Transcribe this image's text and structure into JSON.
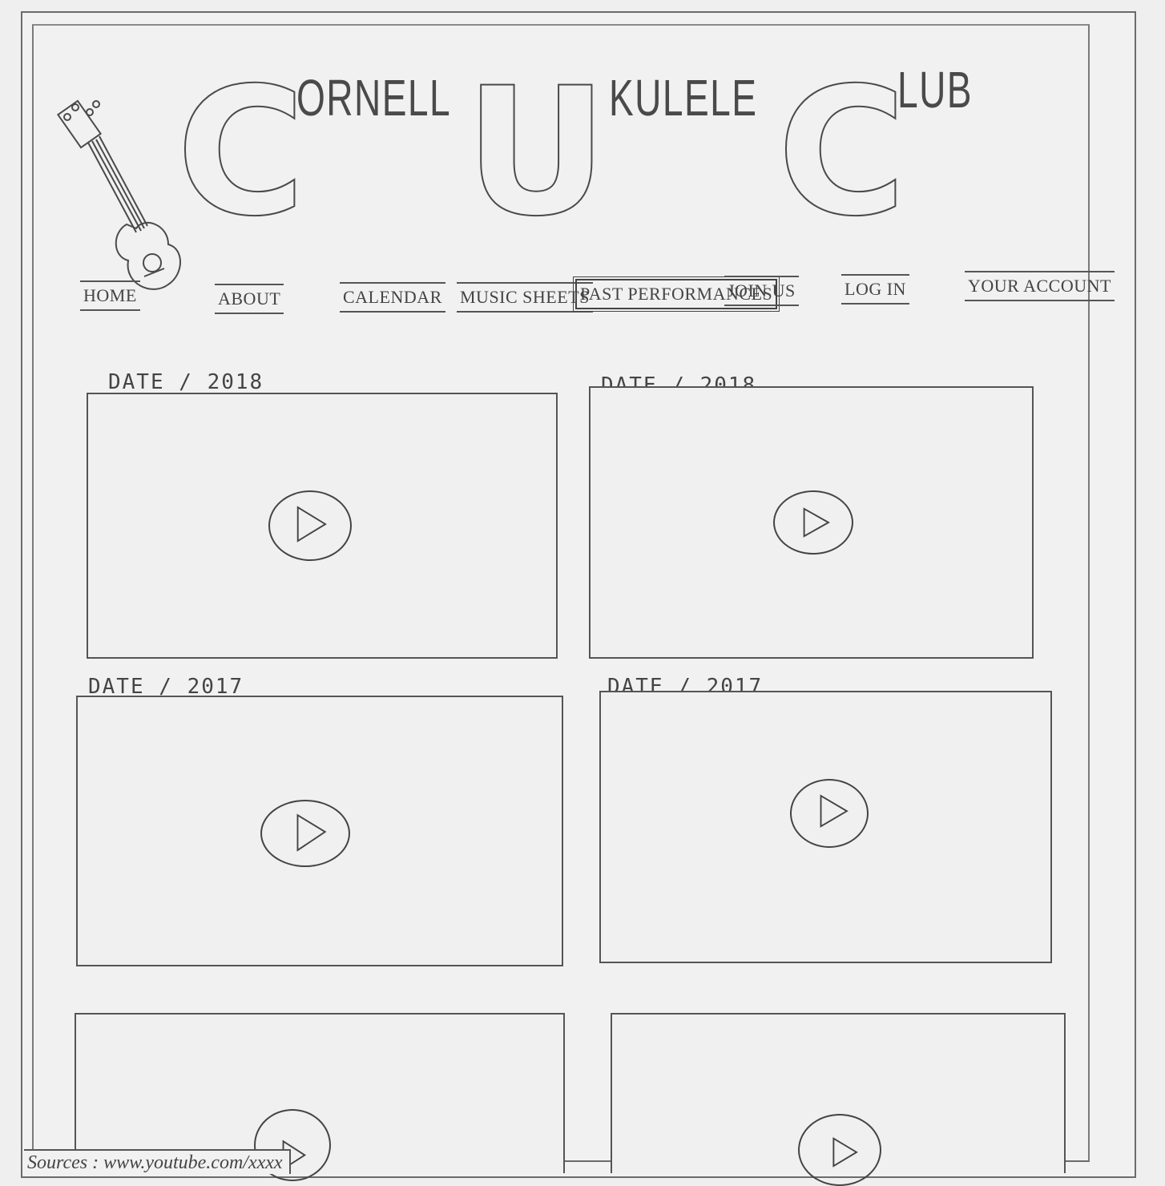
{
  "header": {
    "title_letters": {
      "c1": "C",
      "w1": "ORNELL",
      "u": "U",
      "w2": "KULELE",
      "c2": "C",
      "w3": "LUB"
    }
  },
  "nav": {
    "items": [
      {
        "label": "HOME"
      },
      {
        "label": "ABOUT"
      },
      {
        "label": "CALENDAR"
      },
      {
        "label": "MUSIC SHEETS"
      },
      {
        "label": "PAST PERFORMANCES",
        "active": true
      },
      {
        "label": "JOIN US"
      },
      {
        "label": "LOG IN"
      },
      {
        "label": "YOUR ACCOUNT"
      }
    ]
  },
  "videos": [
    {
      "date": "DATE / 2018",
      "icon": "play-icon"
    },
    {
      "date": "DATE / 2018",
      "icon": "play-icon"
    },
    {
      "date": "DATE / 2017",
      "icon": "play-icon"
    },
    {
      "date": "DATE / 2017",
      "icon": "play-icon"
    },
    {
      "date": "",
      "icon": "play-icon"
    },
    {
      "date": "",
      "icon": "play-icon"
    }
  ],
  "footer": {
    "sources": "Sources : www.youtube.com/xxxx"
  }
}
